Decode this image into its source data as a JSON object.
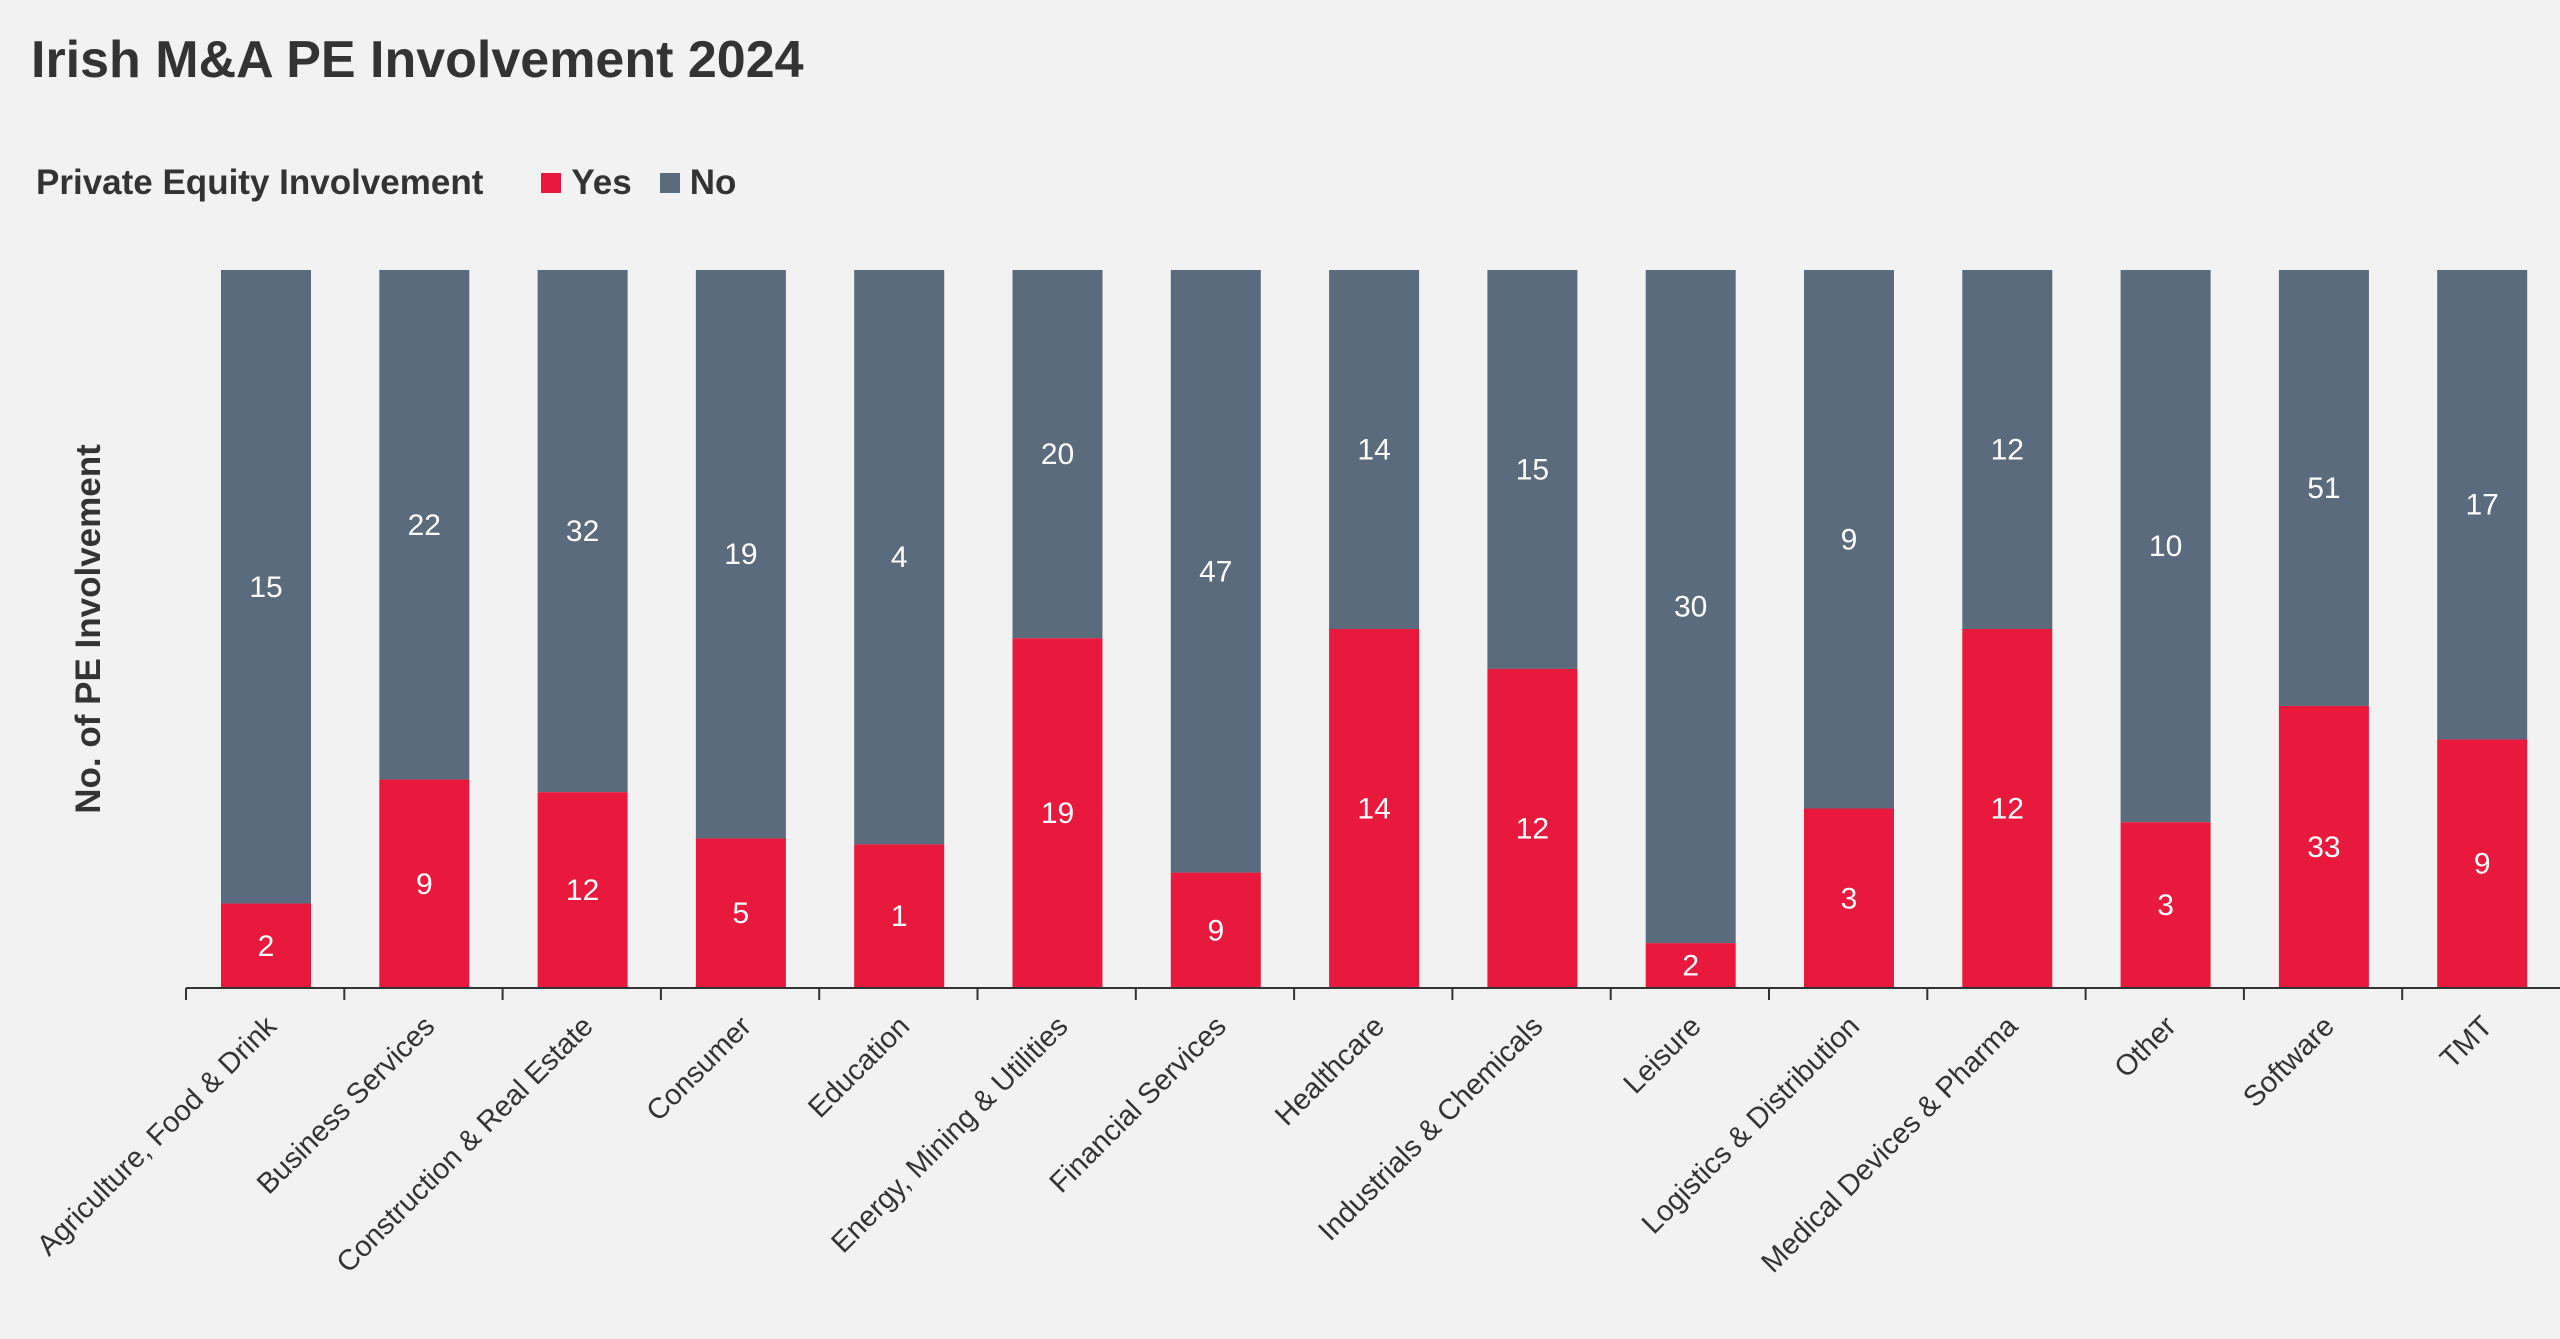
{
  "chart_data": {
    "type": "bar",
    "stacked": true,
    "normalized": true,
    "title": "Irish M&A PE Involvement 2024",
    "legend_title": "Private Equity Involvement",
    "legend_position": "top-left",
    "ylabel": "No. of PE Involvement",
    "xlabel": "",
    "grid": false,
    "categories": [
      "Agriculture, Food & Drink",
      "Business Services",
      "Construction & Real Estate",
      "Consumer",
      "Education",
      "Energy, Mining & Utilities",
      "Financial Services",
      "Healthcare",
      "Industrials & Chemicals",
      "Leisure",
      "Logistics & Distribution",
      "Medical Devices & Pharma",
      "Other",
      "Software",
      "TMT"
    ],
    "series": [
      {
        "name": "Yes",
        "color": "#e8193c",
        "values": [
          2,
          9,
          12,
          5,
          1,
          19,
          9,
          14,
          12,
          2,
          3,
          12,
          3,
          33,
          9
        ]
      },
      {
        "name": "No",
        "color": "#5a6b7d",
        "values": [
          15,
          22,
          32,
          19,
          4,
          20,
          47,
          14,
          15,
          30,
          9,
          12,
          10,
          51,
          17
        ]
      }
    ]
  }
}
